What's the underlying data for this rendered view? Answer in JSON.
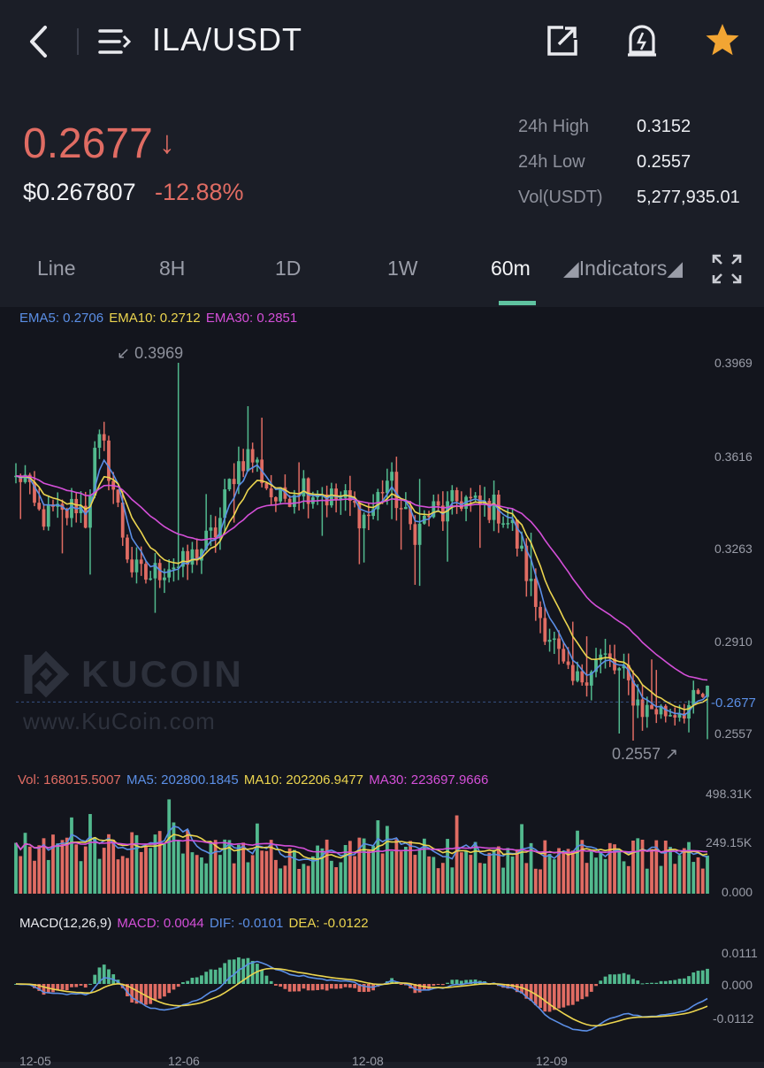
{
  "header": {
    "pair": "ILA/USDT",
    "icons": [
      "back-icon",
      "menu-icon",
      "share-icon",
      "alert-icon",
      "star-icon"
    ]
  },
  "ticker": {
    "last_price": "0.2677",
    "direction_icon": "↓",
    "fiat_price": "$0.267807",
    "change_pct": "-12.88%",
    "stats": [
      {
        "label": "24h High",
        "value": "0.3152"
      },
      {
        "label": "24h Low",
        "value": "0.2557"
      },
      {
        "label": "Vol(USDT)",
        "value": "5,277,935.01"
      }
    ]
  },
  "tabs": [
    {
      "label": "Line",
      "active": false
    },
    {
      "label": "8H",
      "active": false
    },
    {
      "label": "1D",
      "active": false
    },
    {
      "label": "1W",
      "active": false
    },
    {
      "label": "60m",
      "active": true
    },
    {
      "label": "◢Indicators◢",
      "active": false
    }
  ],
  "colors": {
    "up": "#52b98e",
    "down": "#e06c63",
    "ema5": "#5b8fe6",
    "ema10": "#ecd54f",
    "ema30": "#d44fd8",
    "bg": "#13151d",
    "accent": "#f2a533"
  },
  "main_chart": {
    "legend": {
      "ema5": "EMA5: 0.2706",
      "ema10": "EMA10: 0.2712",
      "ema30": "EMA30: 0.2851"
    },
    "y_ticks": [
      "0.3969",
      "0.3616",
      "0.3263",
      "0.2910",
      "0.2557"
    ],
    "current_label": "-0.2677",
    "max_label": "↙ 0.3969",
    "min_label": "0.2557 ↗",
    "watermark": "KUCOIN",
    "watermark_url": "www.KuCoin.com"
  },
  "volume_chart": {
    "legend": {
      "vol": "Vol: 168015.5007",
      "ma5": "MA5: 202800.1845",
      "ma10": "MA10: 202206.9477",
      "ma30": "MA30: 223697.9666"
    },
    "y_ticks": [
      "498.31K",
      "249.15K",
      "0.000"
    ]
  },
  "macd_chart": {
    "legend": {
      "name": "MACD(12,26,9)",
      "macd": "MACD: 0.0044",
      "dif": "DIF: -0.0101",
      "dea": "DEA: -0.0122"
    },
    "y_ticks": [
      "0.0111",
      "0.000",
      "-0.0112"
    ]
  },
  "x_ticks": [
    "12-05",
    "12-06",
    "12-08",
    "12-09"
  ],
  "chart_data": {
    "type": "candlestick",
    "price_range": [
      0.2557,
      0.3969
    ],
    "price_path": [
      0.352,
      0.355,
      0.343,
      0.339,
      0.338,
      0.34,
      0.338,
      0.341,
      0.344,
      0.337,
      0.36,
      0.367,
      0.356,
      0.343,
      0.328,
      0.318,
      0.316,
      0.315,
      0.317,
      0.319,
      0.321,
      0.319,
      0.32,
      0.324,
      0.327,
      0.33,
      0.334,
      0.346,
      0.355,
      0.36,
      0.362,
      0.358,
      0.352,
      0.346,
      0.344,
      0.347,
      0.35,
      0.351,
      0.348,
      0.349,
      0.346,
      0.345,
      0.345,
      0.343,
      0.34,
      0.338,
      0.341,
      0.349,
      0.353,
      0.345,
      0.338,
      0.333,
      0.334,
      0.339,
      0.341,
      0.339,
      0.342,
      0.345,
      0.345,
      0.342,
      0.342,
      0.342,
      0.341,
      0.338,
      0.333,
      0.324,
      0.314,
      0.304,
      0.297,
      0.292,
      0.283,
      0.276,
      0.274,
      0.278,
      0.282,
      0.284,
      0.284,
      0.28,
      0.278,
      0.273,
      0.268,
      0.264,
      0.266,
      0.264,
      0.264,
      0.265,
      0.266,
      0.266,
      0.269,
      0.27
    ],
    "volume_range": [
      0,
      498310
    ],
    "macd_range": [
      -0.0112,
      0.0111
    ]
  }
}
